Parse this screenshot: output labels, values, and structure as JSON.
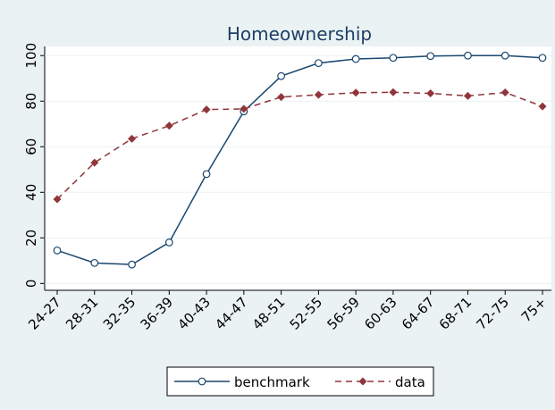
{
  "chart_data": {
    "type": "line",
    "title": "Homeownership",
    "categories": [
      "24-27",
      "28-31",
      "32-35",
      "36-39",
      "40-43",
      "44-47",
      "48-51",
      "52-55",
      "56-59",
      "60-63",
      "64-67",
      "68-71",
      "72-75",
      "75+"
    ],
    "series": [
      {
        "name": "benchmark",
        "color": "#1a476f",
        "marker": "circle",
        "dash": "solid",
        "values": [
          14.5,
          9,
          8.3,
          18,
          48,
          75.5,
          91,
          96.7,
          98.5,
          99,
          99.8,
          100,
          100,
          99
        ]
      },
      {
        "name": "data",
        "color": "#90353b",
        "marker": "diamond",
        "dash": "dashed",
        "values": [
          37,
          53,
          63.5,
          69.2,
          76.3,
          76.6,
          81.8,
          82.8,
          83.7,
          83.9,
          83.4,
          82.3,
          83.8,
          77.7
        ]
      }
    ],
    "ylim": [
      -3,
      104
    ],
    "yticks": [
      0,
      20,
      40,
      60,
      80,
      100
    ],
    "grid": true,
    "legend": "bottom"
  }
}
